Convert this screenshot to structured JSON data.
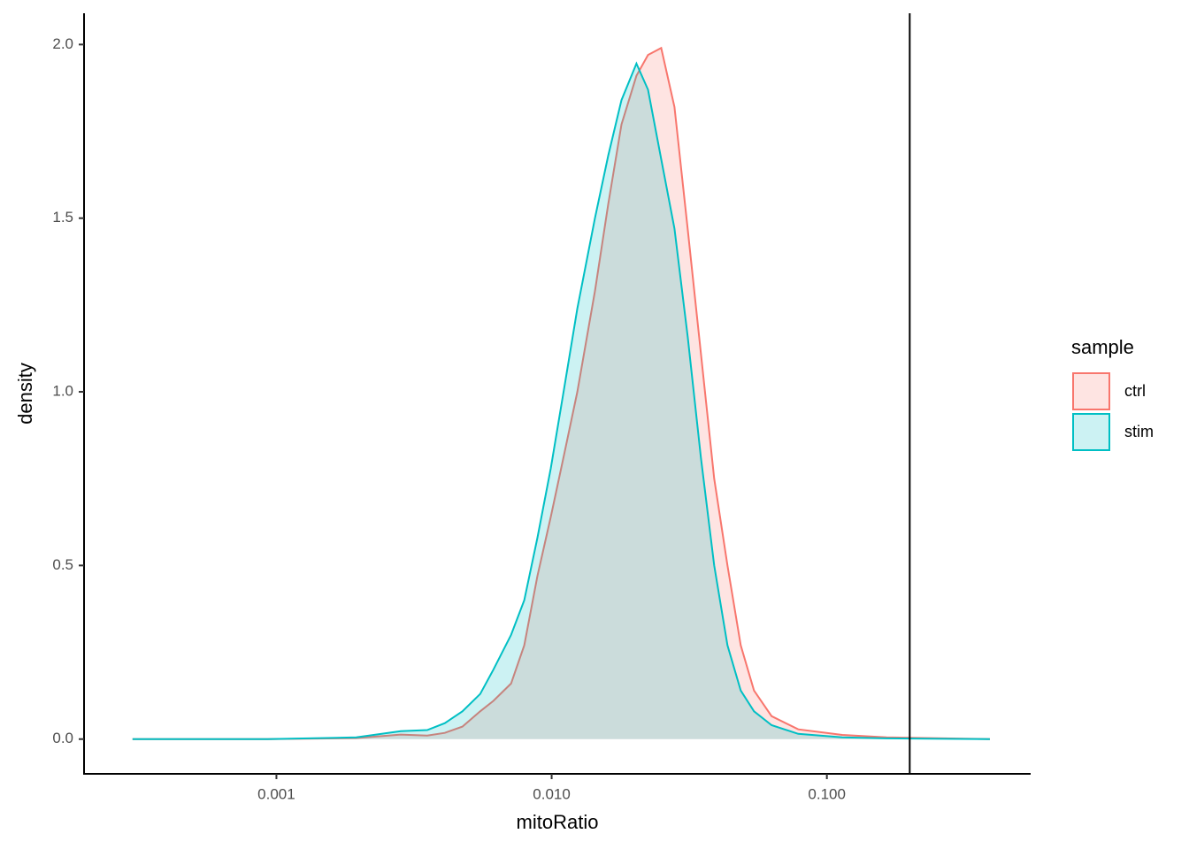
{
  "chart_data": {
    "type": "density",
    "x_label": "mitoRatio",
    "y_label": "density",
    "legend_title": "sample",
    "log_x": true,
    "xlim": [
      0.0002,
      0.55
    ],
    "ylim": [
      -0.1,
      2.09
    ],
    "xticks": [
      {
        "value": 0.001,
        "label": "0.001"
      },
      {
        "value": 0.01,
        "label": "0.010"
      },
      {
        "value": 0.1,
        "label": "0.100"
      }
    ],
    "yticks": [
      {
        "value": 0,
        "label": "0.0"
      },
      {
        "value": 0.5,
        "label": "0.5"
      },
      {
        "value": 1,
        "label": "1.0"
      },
      {
        "value": 1.5,
        "label": "1.5"
      },
      {
        "value": 2,
        "label": "2.0"
      }
    ],
    "vline": 0.2,
    "x": [
      0.0003,
      0.00093,
      0.00195,
      0.00283,
      0.00353,
      0.00409,
      0.00474,
      0.0055,
      0.00614,
      0.00712,
      0.00795,
      0.00888,
      0.00993,
      0.0111,
      0.0124,
      0.01437,
      0.01605,
      0.01793,
      0.02033,
      0.02239,
      0.02501,
      0.02794,
      0.0312,
      0.03487,
      0.03896,
      0.04353,
      0.04864,
      0.05434,
      0.063,
      0.0787,
      0.1138,
      0.1647,
      0.391
    ],
    "series": [
      {
        "name": "ctrl",
        "color": "#F8766D",
        "values": [
          0,
          0,
          0.003,
          0.013,
          0.01,
          0.018,
          0.036,
          0.08,
          0.11,
          0.16,
          0.27,
          0.47,
          0.64,
          0.82,
          1.0,
          1.29,
          1.54,
          1.77,
          1.91,
          1.97,
          1.99,
          1.82,
          1.47,
          1.11,
          0.75,
          0.5,
          0.27,
          0.14,
          0.066,
          0.028,
          0.012,
          0.005,
          0
        ]
      },
      {
        "name": "stim",
        "color": "#00BFC4",
        "values": [
          0,
          0,
          0.005,
          0.023,
          0.026,
          0.046,
          0.08,
          0.13,
          0.2,
          0.3,
          0.4,
          0.58,
          0.78,
          1.01,
          1.24,
          1.5,
          1.68,
          1.84,
          1.945,
          1.87,
          1.67,
          1.47,
          1.16,
          0.81,
          0.5,
          0.27,
          0.14,
          0.08,
          0.04,
          0.015,
          0.005,
          0.002,
          0
        ]
      }
    ]
  }
}
